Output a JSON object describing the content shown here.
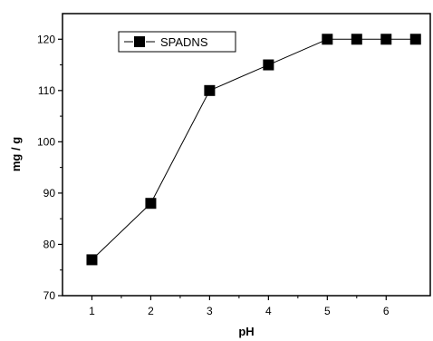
{
  "chart_data": {
    "type": "line",
    "title": "",
    "xlabel": "pH",
    "ylabel": "mg / g",
    "x_ticks": [
      1,
      2,
      3,
      4,
      5,
      6
    ],
    "y_ticks": [
      70,
      80,
      90,
      100,
      110,
      120
    ],
    "xlim": [
      0.5,
      6.75
    ],
    "ylim": [
      70,
      125
    ],
    "grid": false,
    "legend_position": "top-left",
    "series": [
      {
        "name": "SPADNS",
        "marker": "square",
        "color": "#000000",
        "points": [
          {
            "x": 1,
            "y": 77
          },
          {
            "x": 2,
            "y": 88
          },
          {
            "x": 3,
            "y": 110
          },
          {
            "x": 4,
            "y": 115
          },
          {
            "x": 5,
            "y": 120
          },
          {
            "x": 5.5,
            "y": 120
          },
          {
            "x": 6,
            "y": 120
          },
          {
            "x": 6.5,
            "y": 120
          }
        ]
      }
    ]
  }
}
